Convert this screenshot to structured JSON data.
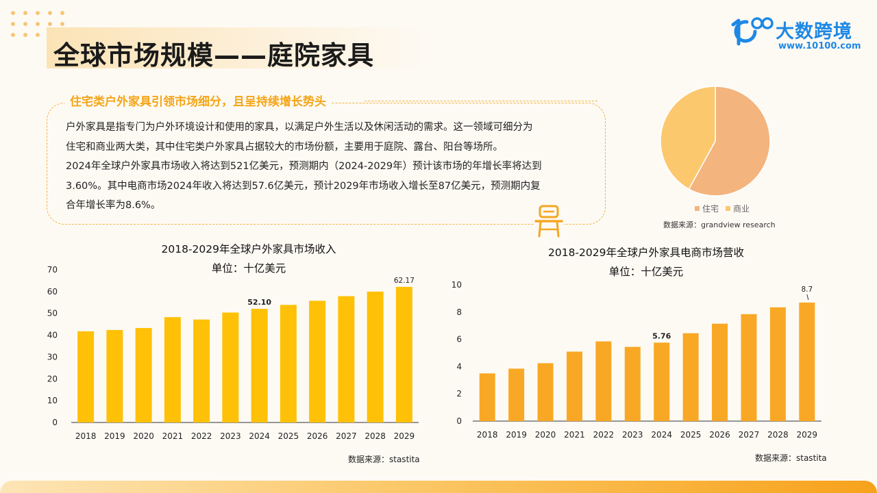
{
  "page": {
    "title": "全球市场规模——庭院家具"
  },
  "logo": {
    "name": "大数跨境",
    "url": "www.10100.com",
    "colors": {
      "brand": "#1e88e5"
    }
  },
  "description": {
    "heading": "住宅类户外家具引领市场细分，且呈持续增长势头",
    "lines": [
      "户外家具是指专门为户外环境设计和使用的家具，以满足户外生活以及休闲活动的需求。这一领域可细分为",
      "住宅和商业两大类，其中住宅类户外家具占据较大的市场份额，主要用于庭院、露台、阳台等场所。",
      "2024年全球户外家具市场收入将达到521亿美元，预测期内（2024-2029年）预计该市场的年增长率将达到",
      "3.60%。其中电商市场2024年收入将达到57.6亿美元，预计2029年市场收入增长至87亿美元，预测期内复",
      "合年增长率为8.6%。"
    ],
    "icon": "chair-icon"
  },
  "chart_data": [
    {
      "type": "pie",
      "categories": [
        "住宅",
        "商业"
      ],
      "values": [
        58,
        42
      ],
      "colors": [
        "#f4b47e",
        "#fbc86e"
      ],
      "title": "",
      "source": "数据来源：grandview research",
      "legend": "bottom"
    },
    {
      "type": "bar",
      "title": "2018-2029年全球户外家具市场收入",
      "subtitle": "单位：十亿美元",
      "categories": [
        "2018",
        "2019",
        "2020",
        "2021",
        "2022",
        "2023",
        "2024",
        "2025",
        "2026",
        "2027",
        "2028",
        "2029"
      ],
      "values": [
        41.8,
        42.4,
        43.3,
        48.3,
        47.2,
        50.4,
        52.1,
        53.9,
        55.8,
        57.9,
        60.0,
        62.17
      ],
      "data_labels": {
        "6": "52.10",
        "11": "62.17"
      },
      "ylim": [
        0,
        70
      ],
      "yticks": [
        0,
        10,
        20,
        30,
        40,
        50,
        60,
        70
      ],
      "color": "#ffc107",
      "grid": false,
      "source": "数据来源：stastita"
    },
    {
      "type": "bar",
      "title": "2018-2029年全球户外家具电商市场营收",
      "subtitle": "单位：十亿美元",
      "categories": [
        "2018",
        "2019",
        "2020",
        "2021",
        "2022",
        "2023",
        "2024",
        "2025",
        "2026",
        "2027",
        "2028",
        "2029"
      ],
      "values": [
        3.5,
        3.85,
        4.25,
        5.1,
        5.85,
        5.45,
        5.76,
        6.45,
        7.15,
        7.85,
        8.35,
        8.7
      ],
      "data_labels": {
        "6": "5.76",
        "11": "8.7"
      },
      "ylim": [
        0,
        10
      ],
      "yticks": [
        0,
        2,
        4,
        6,
        8,
        10
      ],
      "color": "#f9a825",
      "grid": false,
      "source": "数据来源：stastita"
    }
  ]
}
